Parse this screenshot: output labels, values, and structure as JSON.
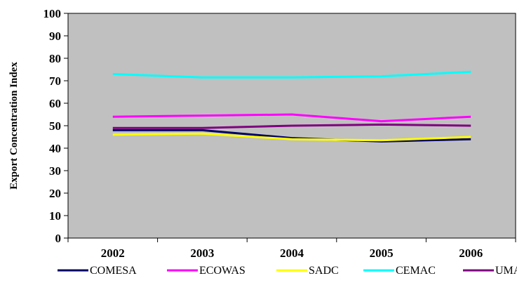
{
  "chart_data": {
    "type": "line",
    "title": "",
    "xlabel": "",
    "ylabel": "Export Concentration Index",
    "categories": [
      "2002",
      "2003",
      "2004",
      "2005",
      "2006"
    ],
    "ylim": [
      0,
      100
    ],
    "yticks": [
      0,
      10,
      20,
      30,
      40,
      50,
      60,
      70,
      80,
      90,
      100
    ],
    "grid": false,
    "plot_background": "#c0c0c0",
    "legend_position": "bottom",
    "series": [
      {
        "name": "COMESA",
        "color": "#000066",
        "values": [
          48,
          48,
          44.5,
          43,
          44
        ]
      },
      {
        "name": "ECOWAS",
        "color": "#ff00ff",
        "values": [
          54,
          54.5,
          55,
          52,
          54
        ]
      },
      {
        "name": "SADC",
        "color": "#ffff00",
        "values": [
          46,
          46.5,
          44,
          43.5,
          45
        ]
      },
      {
        "name": "CEMAC",
        "color": "#00ffff",
        "values": [
          73,
          71.5,
          71.5,
          72,
          74
        ]
      },
      {
        "name": "UMA",
        "color": "#800080",
        "values": [
          49,
          49,
          50,
          50.5,
          50
        ]
      }
    ]
  }
}
